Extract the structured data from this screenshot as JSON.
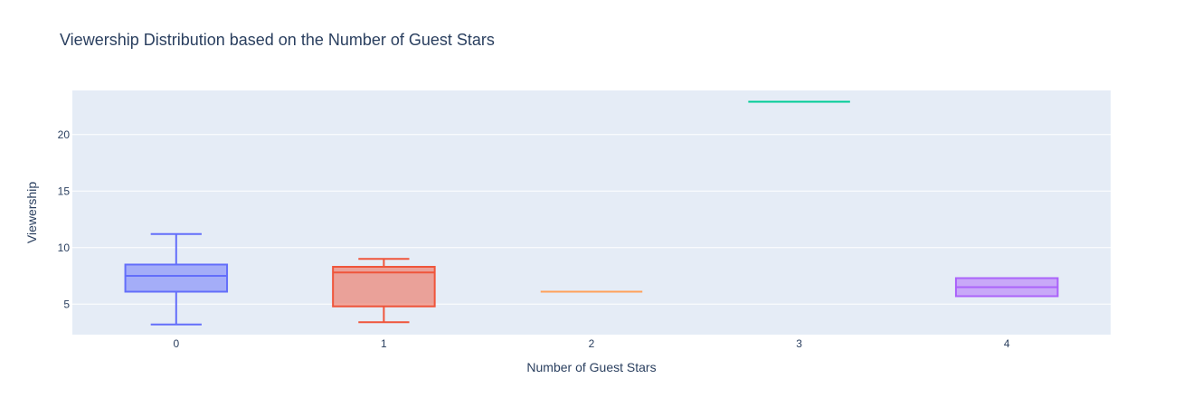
{
  "chart_data": {
    "type": "box",
    "title": "Viewership Distribution based on the Number of Guest Stars",
    "xlabel": "Number of Guest Stars",
    "ylabel": "Viewership",
    "categories": [
      "0",
      "1",
      "2",
      "3",
      "4"
    ],
    "ylim": [
      2.3,
      23.9
    ],
    "yticks": [
      5,
      10,
      15,
      20
    ],
    "grid": true,
    "legend": "none",
    "series": [
      {
        "category": "0",
        "color": "#636efa",
        "fill": "rgba(99,110,250,0.5)",
        "min": 3.2,
        "q1": 6.1,
        "median": 7.5,
        "q3": 8.5,
        "max": 11.2
      },
      {
        "category": "1",
        "color": "#ef553b",
        "fill": "rgba(239,85,59,0.5)",
        "min": 3.4,
        "q1": 4.8,
        "median": 7.8,
        "q3": 8.3,
        "max": 9.0
      },
      {
        "category": "2",
        "color": "#ffa15a",
        "fill": "rgba(255,161,90,0.5)",
        "min": 6.1,
        "q1": 6.1,
        "median": 6.1,
        "q3": 6.1,
        "max": 6.1
      },
      {
        "category": "3",
        "color": "#00cc96",
        "fill": "rgba(0,204,150,0.5)",
        "min": 22.9,
        "q1": 22.9,
        "median": 22.9,
        "q3": 22.9,
        "max": 22.9
      },
      {
        "category": "4",
        "color": "#ab63fa",
        "fill": "rgba(171,99,250,0.5)",
        "min": 5.7,
        "q1": 5.7,
        "median": 6.5,
        "q3": 7.3,
        "max": 7.3
      }
    ]
  }
}
